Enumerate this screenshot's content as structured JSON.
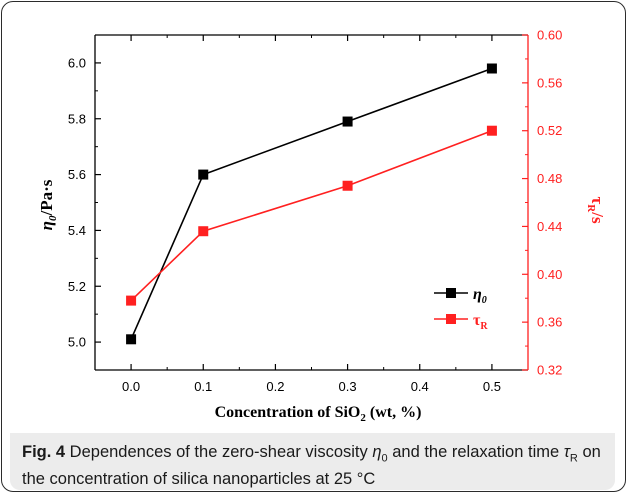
{
  "chart_data": {
    "type": "line",
    "title": "",
    "xlabel": "Concentration of SiO2 (wt, %)",
    "xlabel_parts": {
      "before": "Concentration of SiO",
      "sub": "2",
      "after": " (wt, %)"
    },
    "ylabel_left": {
      "symbol": "η",
      "sub": "0",
      "unit": "/Pa·s"
    },
    "ylabel_right": {
      "symbol": "τ",
      "sub": "R",
      "unit": "/s"
    },
    "x": [
      0.0,
      0.1,
      0.3,
      0.5
    ],
    "xlim": [
      -0.05,
      0.55
    ],
    "xticks": [
      "0.0",
      "0.1",
      "0.2",
      "0.3",
      "0.4",
      "0.5"
    ],
    "ylim_left": [
      4.9,
      6.1
    ],
    "yticks_left": [
      "5.0",
      "5.2",
      "5.4",
      "5.6",
      "5.8",
      "6.0"
    ],
    "ylim_right": [
      0.32,
      0.6
    ],
    "yticks_right": [
      "0.32",
      "0.36",
      "0.40",
      "0.44",
      "0.48",
      "0.52",
      "0.56",
      "0.60"
    ],
    "series": [
      {
        "name": "η0",
        "label_main": "η",
        "label_sub": "0",
        "axis": "left",
        "color": "#000000",
        "marker": "square",
        "values": [
          5.01,
          5.6,
          5.79,
          5.98
        ]
      },
      {
        "name": "τR",
        "label_main": "τ",
        "label_sub": "R",
        "axis": "right",
        "color": "#ff2020",
        "marker": "square",
        "values": [
          0.378,
          0.436,
          0.474,
          0.52
        ]
      }
    ],
    "legend_position": "lower-right",
    "grid": false
  },
  "caption": {
    "fig_label": "Fig. 4",
    "text_1": " Dependences of the zero-shear viscosity ",
    "eta_symbol": "η",
    "eta_sub": "0",
    "text_2": " and the relaxation time ",
    "tau_symbol": "τ",
    "tau_sub": "R",
    "text_3": " on the concentration of silica nanoparticles at 25 °C"
  },
  "colors": {
    "left_axis": "#000000",
    "right_axis": "#ff2020",
    "caption_bg": "#ececec"
  }
}
